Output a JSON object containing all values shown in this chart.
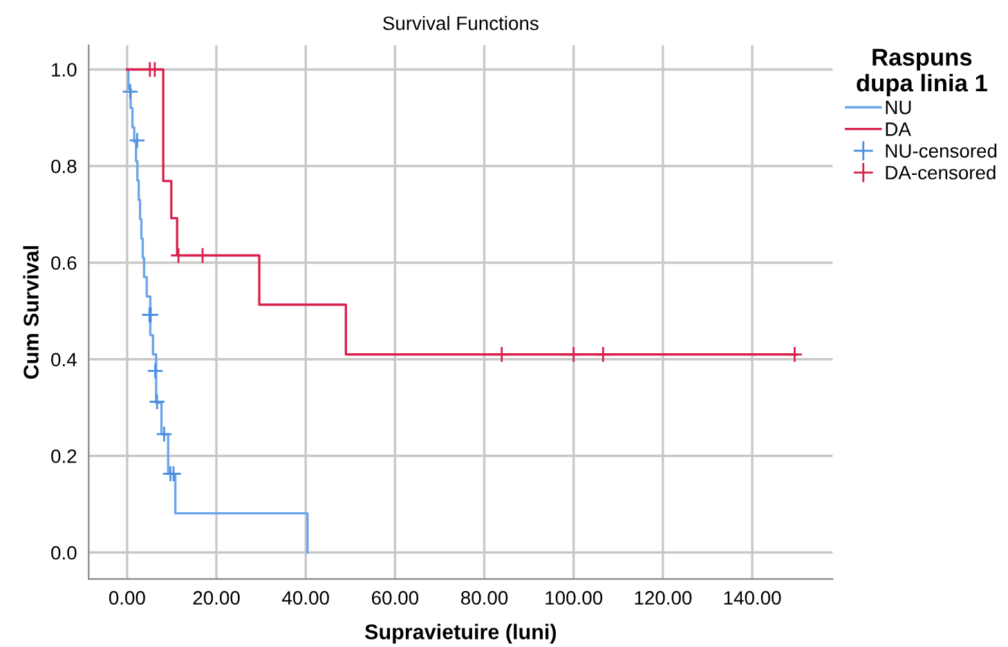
{
  "chart_data": {
    "type": "step",
    "title": "Survival Functions",
    "xlabel": "Supravietuire (luni)",
    "ylabel": "Cum Survival",
    "legend_title": "Raspuns\ndupa linia 1",
    "series": [
      {
        "name": "NU",
        "color": "#6aa4ea",
        "x": [
          0,
          0.3,
          0.8,
          1.2,
          1.6,
          2.0,
          2.3,
          2.6,
          2.9,
          3.2,
          3.5,
          3.8,
          4.4,
          5.2,
          5.8,
          6.5,
          7.7,
          9.2,
          10.8,
          40.4
        ],
        "values": [
          1.0,
          0.96,
          0.92,
          0.88,
          0.85,
          0.81,
          0.77,
          0.73,
          0.69,
          0.65,
          0.61,
          0.57,
          0.53,
          0.45,
          0.41,
          0.31,
          0.245,
          0.163,
          0.081,
          0.0
        ]
      },
      {
        "name": "DA",
        "color": "#d9204c",
        "x": [
          0,
          8.1,
          9.9,
          11.2,
          29.6,
          49,
          150
        ],
        "values": [
          1.0,
          0.769,
          0.692,
          0.615,
          0.513,
          0.41,
          0.41
        ]
      },
      {
        "name": "NU-censored",
        "type": "scatter",
        "marker": "cross",
        "color": "#4a8fe0",
        "x": [
          0.7,
          2.25,
          5.0,
          5.3,
          6.3,
          6.7,
          8.3,
          9.7,
          10.4
        ],
        "values": [
          0.954,
          0.853,
          0.492,
          0.492,
          0.376,
          0.312,
          0.245,
          0.163,
          0.163
        ]
      },
      {
        "name": "DA-censored",
        "type": "scatter",
        "marker": "cross",
        "color": "#d9204c",
        "x": [
          5.1,
          6.2,
          11.5,
          16.9,
          83.9,
          100,
          106.6,
          149.5
        ],
        "values": [
          1.0,
          1.0,
          0.615,
          0.615,
          0.41,
          0.41,
          0.41,
          0.41
        ]
      }
    ],
    "xlim": [
      -8.6,
      158
    ],
    "ylim": [
      -0.055,
      1.05
    ],
    "xticks": [
      {
        "value": 0,
        "label": "0.00"
      },
      {
        "value": 20,
        "label": "20.00"
      },
      {
        "value": 40,
        "label": "40.00"
      },
      {
        "value": 60,
        "label": "60.00"
      },
      {
        "value": 80,
        "label": "80.00"
      },
      {
        "value": 100,
        "label": "100.00"
      },
      {
        "value": 120,
        "label": "120.00"
      },
      {
        "value": 140,
        "label": "140.00"
      }
    ],
    "yticks": [
      {
        "value": 0,
        "label": "0.0"
      },
      {
        "value": 0.2,
        "label": "0.2"
      },
      {
        "value": 0.4,
        "label": "0.4"
      },
      {
        "value": 0.6,
        "label": "0.6"
      },
      {
        "value": 0.8,
        "label": "0.8"
      },
      {
        "value": 1.0,
        "label": "1.0"
      }
    ],
    "grid": true,
    "legend": "top right"
  }
}
